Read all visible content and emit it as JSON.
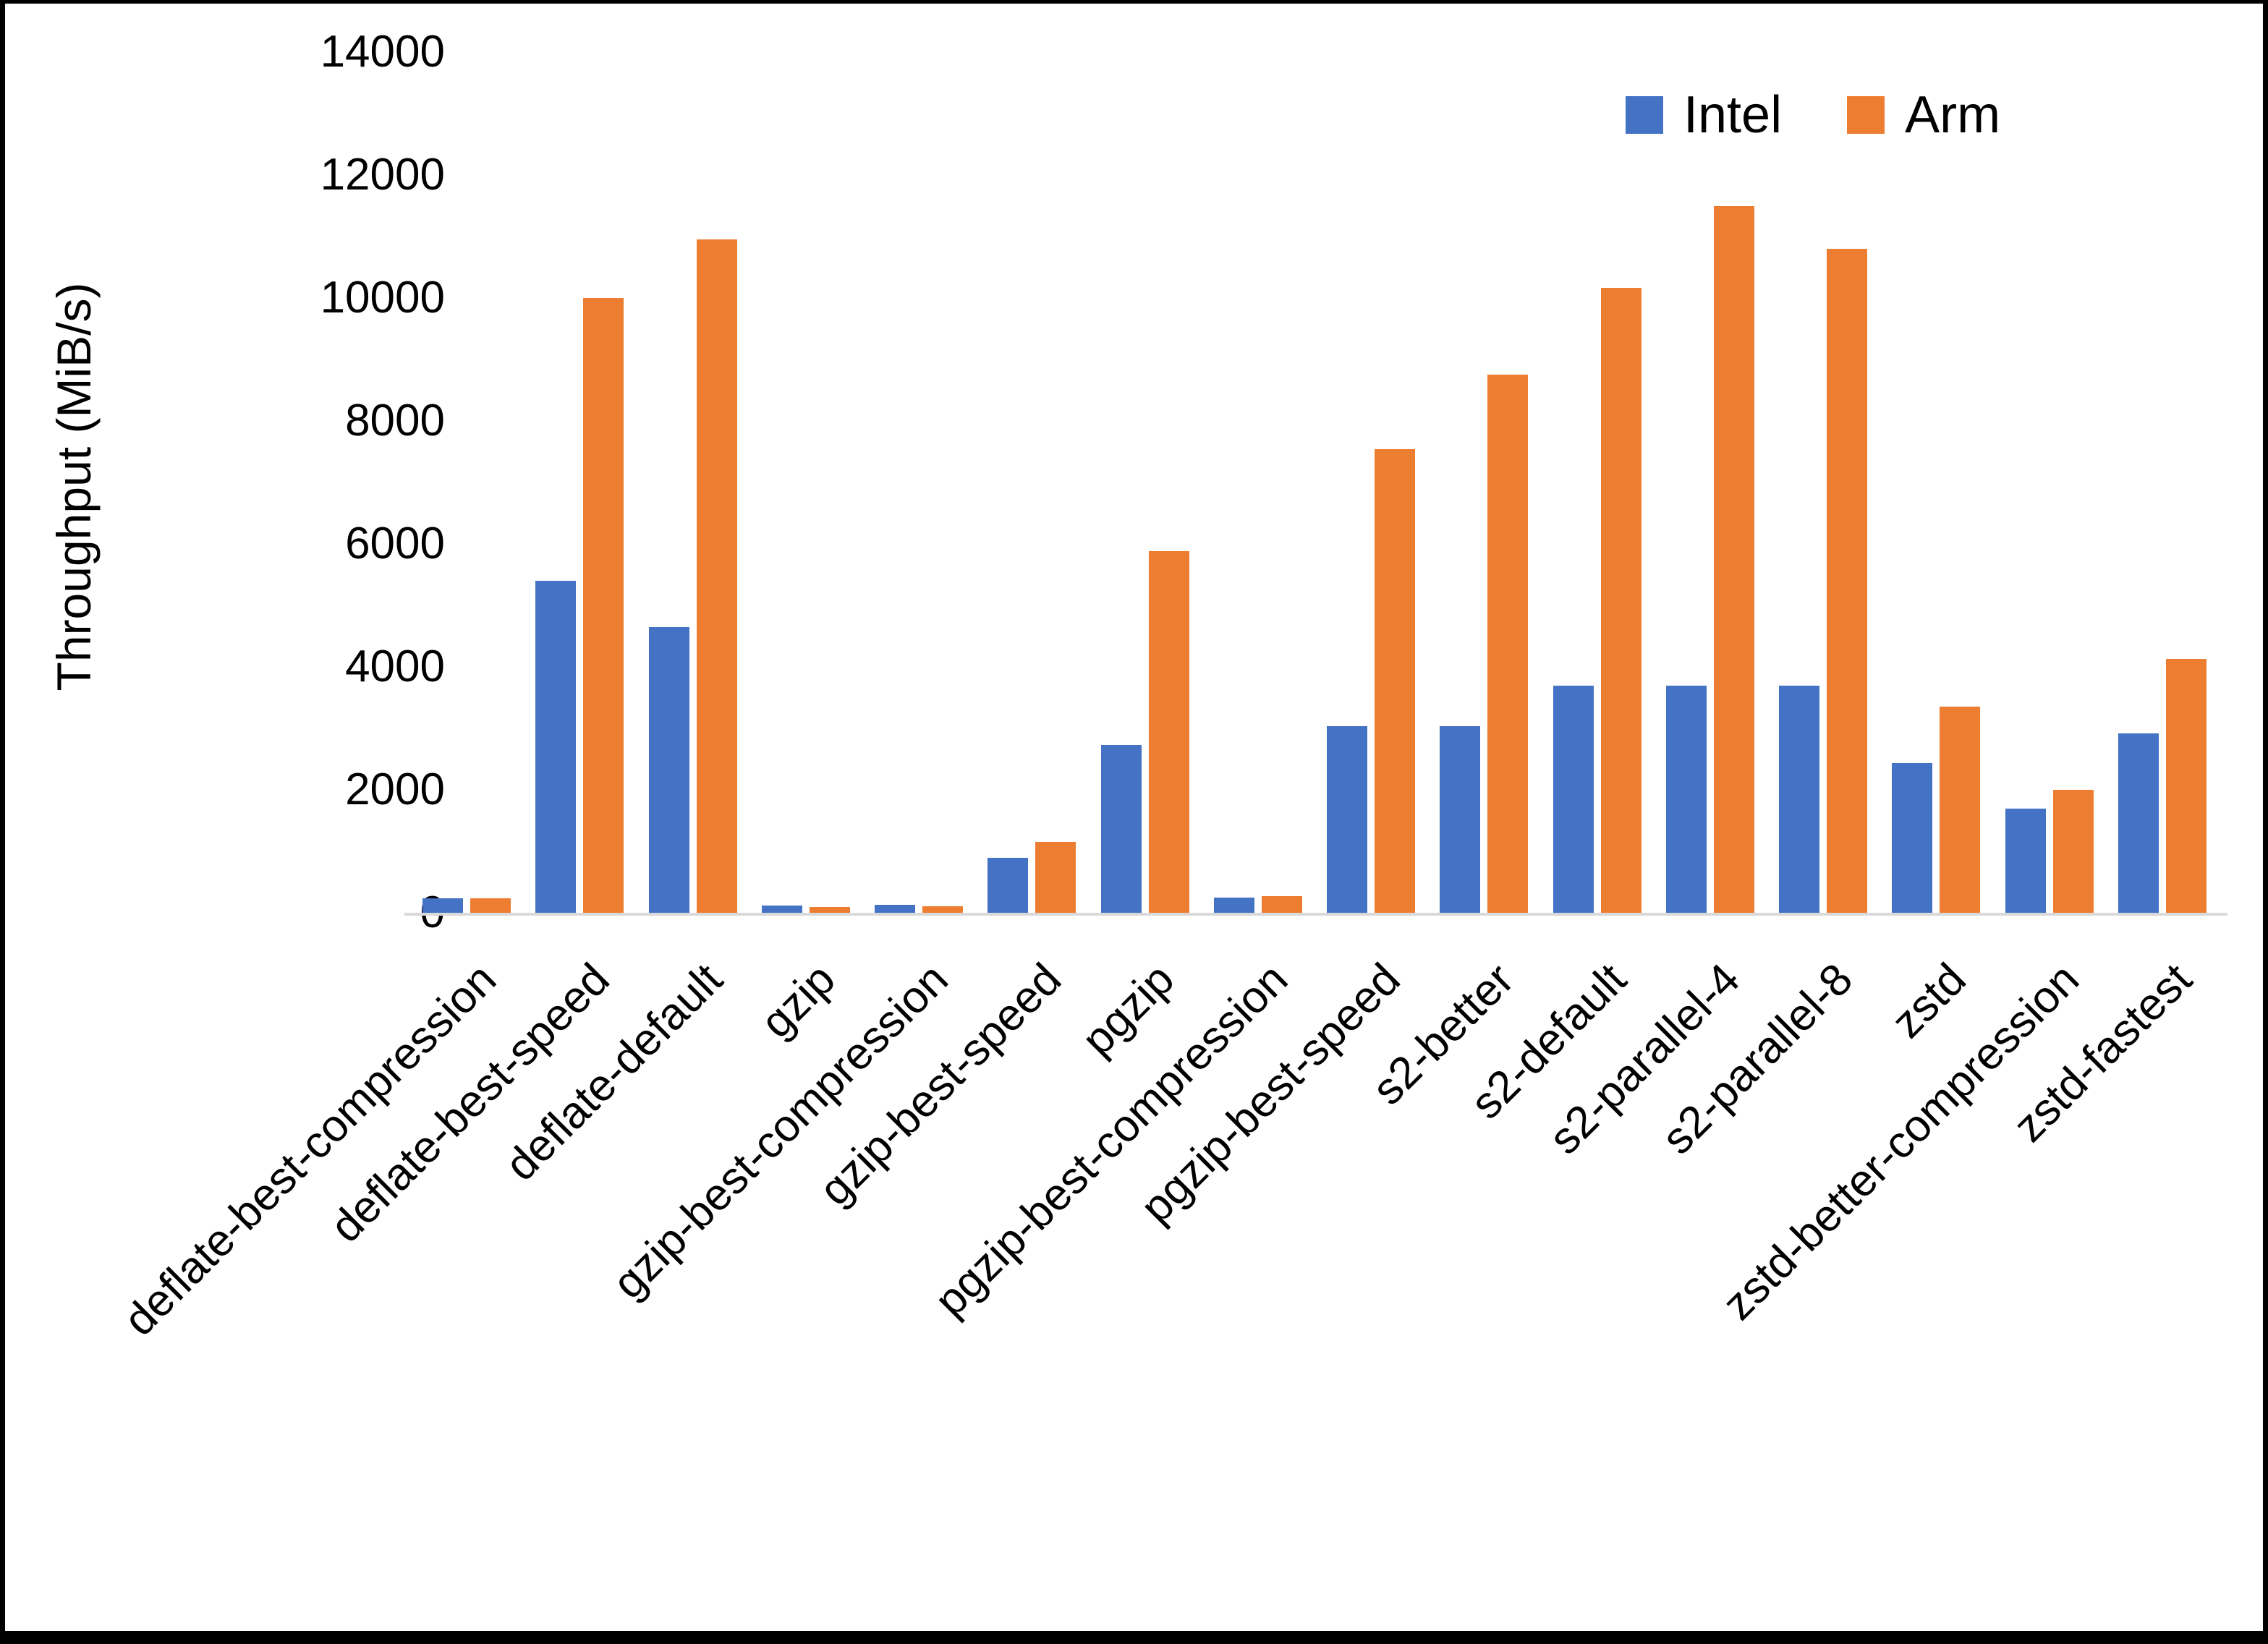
{
  "chart_data": {
    "type": "bar",
    "title": "",
    "xlabel": "",
    "ylabel": "Throughput (MiB/s)",
    "ylim": [
      0,
      14000
    ],
    "yticks": [
      0,
      2000,
      4000,
      6000,
      8000,
      10000,
      12000,
      14000
    ],
    "grid": false,
    "legend_position": "top-right",
    "categories": [
      "deflate-best-compression",
      "deflate-best-speed",
      "deflate-default",
      "gzip",
      "gzip-best-compression",
      "gzip-best-speed",
      "pgzip",
      "pgzip-best-compression",
      "pgzip-best-speed",
      "s2-better",
      "s2-default",
      "s2-parallel-4",
      "s2-parallel-8",
      "zstd",
      "zstd-better-compression",
      "zstd-fastest"
    ],
    "series": [
      {
        "name": "Intel",
        "color": "#4472C4",
        "values": [
          240,
          5400,
          4650,
          120,
          130,
          900,
          2730,
          250,
          3030,
          3030,
          3700,
          3700,
          3700,
          2430,
          1700,
          2920
        ]
      },
      {
        "name": "Arm",
        "color": "#ED7D31",
        "values": [
          230,
          10000,
          10950,
          95,
          105,
          1150,
          5880,
          270,
          7540,
          8750,
          10160,
          11490,
          10800,
          3350,
          2000,
          4130
        ]
      }
    ]
  }
}
